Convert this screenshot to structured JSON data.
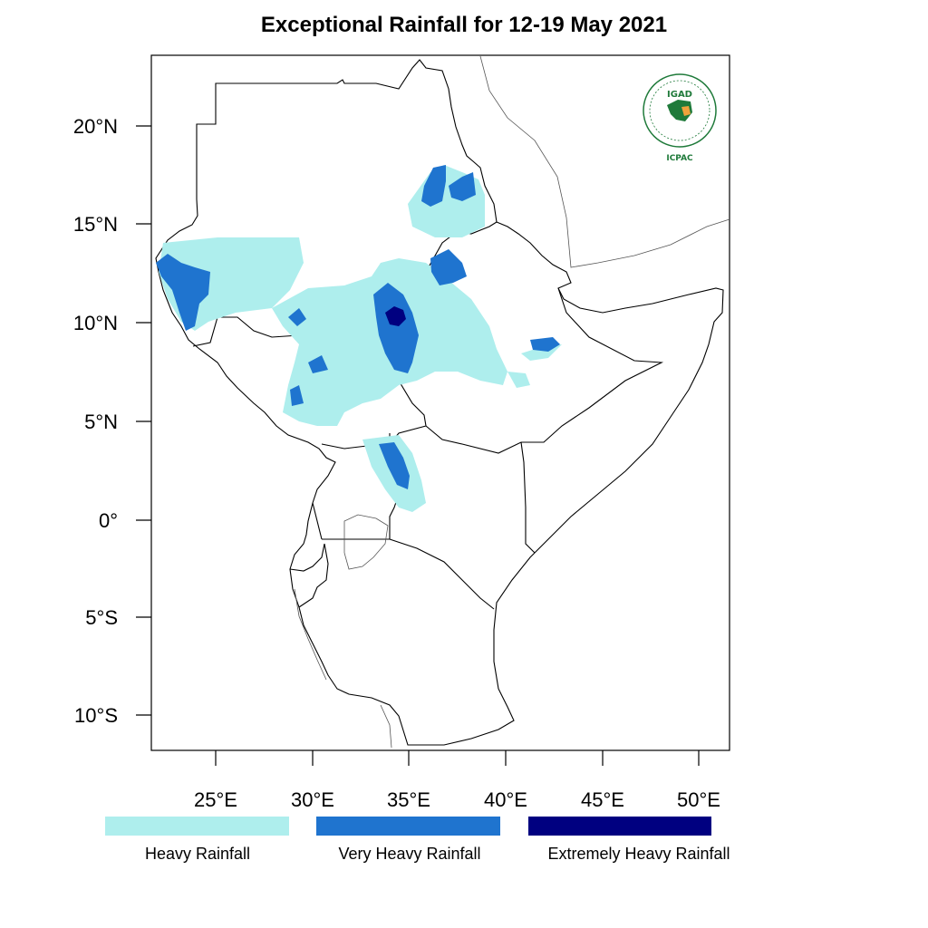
{
  "title": "Exceptional Rainfall for 12-19 May 2021",
  "axes": {
    "lat_labels": [
      "20°N",
      "15°N",
      "10°N",
      "5°N",
      "0°",
      "5°S",
      "10°S"
    ],
    "lon_labels": [
      "25°E",
      "30°E",
      "35°E",
      "40°E",
      "45°E",
      "50°E"
    ]
  },
  "legend": [
    {
      "label": "Heavy Rainfall",
      "color": "#aeeeed"
    },
    {
      "label": "Very Heavy Rainfall",
      "color": "#1f74cf"
    },
    {
      "label": "Extremely Heavy Rainfall",
      "color": "#000080"
    }
  ],
  "logo": {
    "acronym": "IGAD",
    "center": "ICPAC",
    "colors": {
      "green": "#1f7a3a",
      "orange": "#f0a23c"
    }
  },
  "icons": {
    "logo": "igad-logo-icon"
  }
}
